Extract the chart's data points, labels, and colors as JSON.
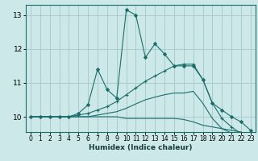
{
  "xlabel": "Humidex (Indice chaleur)",
  "bg_color": "#cce8e8",
  "grid_color": "#aacccc",
  "line_color": "#1a6e6a",
  "xlim": [
    -0.5,
    23.5
  ],
  "ylim": [
    9.55,
    13.3
  ],
  "yticks": [
    10,
    11,
    12,
    13
  ],
  "xticks": [
    0,
    1,
    2,
    3,
    4,
    5,
    6,
    7,
    8,
    9,
    10,
    11,
    12,
    13,
    14,
    15,
    16,
    17,
    18,
    19,
    20,
    21,
    22,
    23
  ],
  "lines": [
    {
      "x": [
        0,
        1,
        2,
        3,
        4,
        5,
        6,
        7,
        8,
        9,
        10,
        11,
        12,
        13,
        14,
        15,
        16,
        17,
        18,
        19,
        20,
        21,
        22,
        23
      ],
      "y": [
        10.0,
        10.0,
        10.0,
        10.0,
        10.0,
        10.1,
        10.35,
        11.4,
        10.8,
        10.55,
        13.15,
        13.0,
        11.75,
        12.15,
        11.85,
        11.5,
        11.5,
        11.5,
        11.1,
        10.4,
        10.2,
        10.0,
        9.85,
        9.6
      ],
      "marker": "D",
      "markersize": 2.0
    },
    {
      "x": [
        0,
        1,
        2,
        3,
        4,
        5,
        6,
        7,
        8,
        9,
        10,
        11,
        12,
        13,
        14,
        15,
        16,
        17,
        18,
        19,
        20,
        21,
        22,
        23
      ],
      "y": [
        10.0,
        10.0,
        10.0,
        10.0,
        10.0,
        10.05,
        10.1,
        10.2,
        10.3,
        10.45,
        10.65,
        10.85,
        11.05,
        11.2,
        11.35,
        11.5,
        11.55,
        11.55,
        11.1,
        10.4,
        9.95,
        9.7,
        9.5,
        9.3
      ],
      "marker": "+",
      "markersize": 3.5
    },
    {
      "x": [
        0,
        1,
        2,
        3,
        4,
        5,
        6,
        7,
        8,
        9,
        10,
        11,
        12,
        13,
        14,
        15,
        16,
        17,
        18,
        19,
        20,
        21,
        22,
        23
      ],
      "y": [
        10.0,
        10.0,
        10.0,
        10.0,
        10.0,
        10.0,
        10.0,
        10.05,
        10.1,
        10.15,
        10.25,
        10.38,
        10.5,
        10.58,
        10.65,
        10.7,
        10.7,
        10.75,
        10.4,
        9.95,
        9.65,
        9.52,
        9.42,
        9.3
      ],
      "marker": null,
      "markersize": null
    },
    {
      "x": [
        0,
        1,
        2,
        3,
        4,
        5,
        6,
        7,
        8,
        9,
        10,
        11,
        12,
        13,
        14,
        15,
        16,
        17,
        18,
        19,
        20,
        21,
        22,
        23
      ],
      "y": [
        10.0,
        10.0,
        10.0,
        10.0,
        10.0,
        10.0,
        10.0,
        10.0,
        10.0,
        10.0,
        9.95,
        9.95,
        9.95,
        9.95,
        9.95,
        9.95,
        9.92,
        9.85,
        9.75,
        9.7,
        9.65,
        9.6,
        9.55,
        9.45
      ],
      "marker": null,
      "markersize": null
    }
  ]
}
